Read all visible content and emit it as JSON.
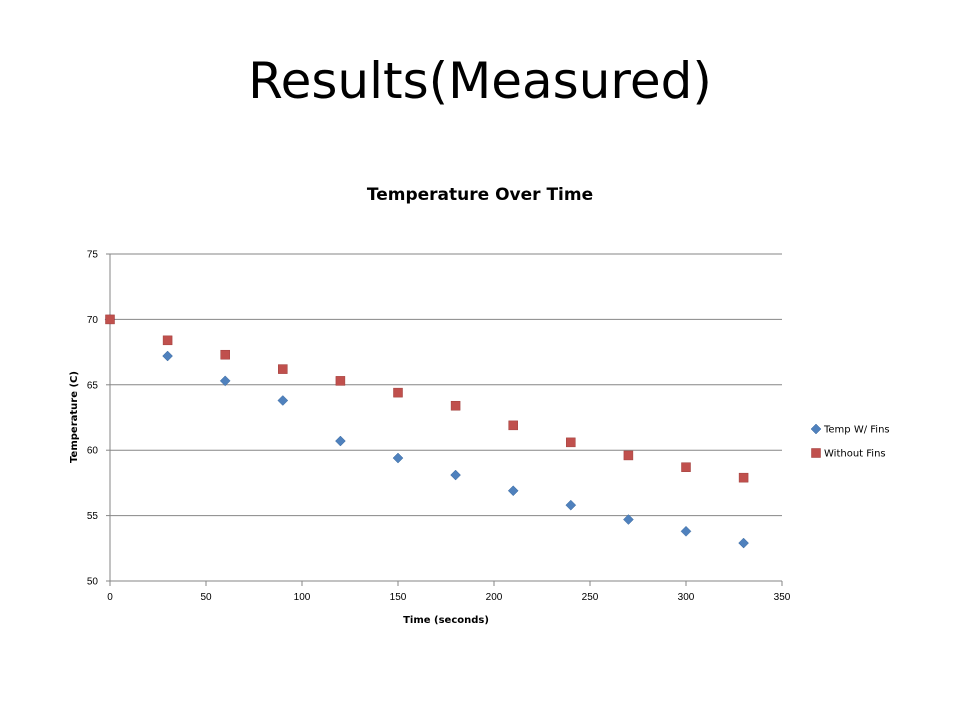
{
  "slide": {
    "title": "Results(Measured)"
  },
  "chart_data": {
    "type": "scatter",
    "title": "Temperature Over Time",
    "xlabel": "Time (seconds)",
    "ylabel": "Temperature (C)",
    "xlim": [
      0,
      350
    ],
    "ylim": [
      50,
      75
    ],
    "xticks": [
      0,
      50,
      100,
      150,
      200,
      250,
      300,
      350
    ],
    "yticks": [
      50,
      55,
      60,
      65,
      70,
      75
    ],
    "grid": "horizontal",
    "legend_position": "right",
    "series": [
      {
        "name": "Temp W/ Fins",
        "marker": "diamond",
        "color": "#4F81BD",
        "x": [
          0,
          30,
          60,
          90,
          120,
          150,
          180,
          210,
          240,
          270,
          300,
          330
        ],
        "y": [
          70.0,
          67.2,
          65.3,
          63.8,
          60.7,
          59.4,
          58.1,
          56.9,
          55.8,
          54.7,
          53.8,
          52.9
        ]
      },
      {
        "name": "Without Fins",
        "marker": "square",
        "color": "#C0504D",
        "x": [
          0,
          30,
          60,
          90,
          120,
          150,
          180,
          210,
          240,
          270,
          300,
          330
        ],
        "y": [
          70.0,
          68.4,
          67.3,
          66.2,
          65.3,
          64.4,
          63.4,
          61.9,
          60.6,
          59.6,
          58.7,
          57.9
        ]
      }
    ]
  }
}
